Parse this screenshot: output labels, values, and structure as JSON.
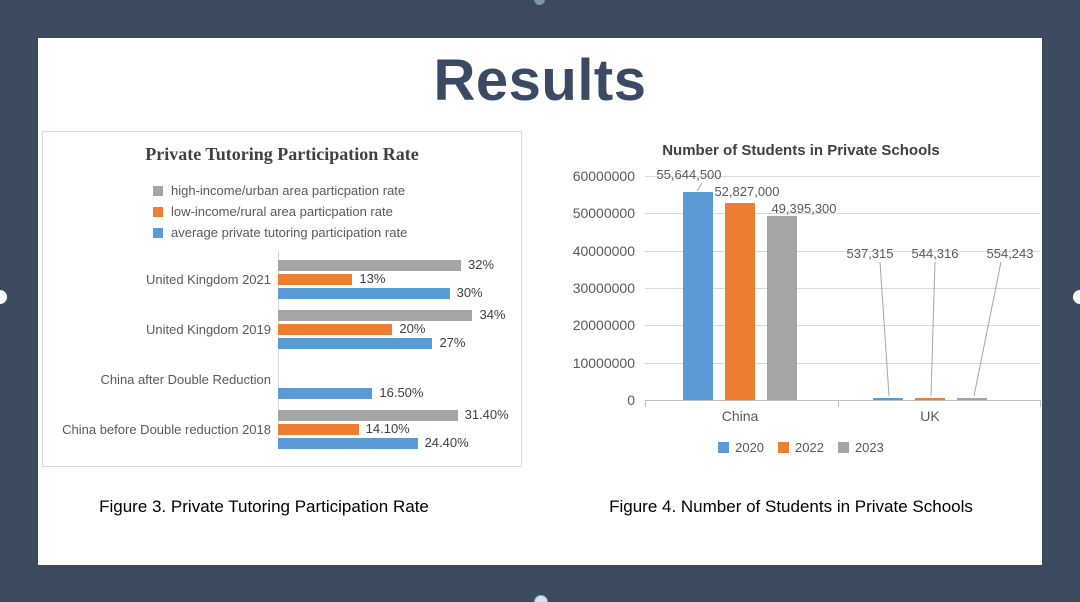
{
  "slide": {
    "title": "Results"
  },
  "figures": [
    {
      "caption": "Figure 3. Private Tutoring Participation Rate"
    },
    {
      "caption": "Figure 4. Number of Students in Private Schools"
    }
  ],
  "colors": {
    "background": "#3C4A5E",
    "slide_title_text": "#3A4A64",
    "series_blue": "#5B9BD5",
    "series_orange": "#ED7D31",
    "series_gray": "#A5A5A5",
    "gridline": "#D9D9D9",
    "axis_line": "#BFBFBF",
    "axis_text": "#595959",
    "chart_title_text": "#404040"
  },
  "chart_data": [
    {
      "type": "bar",
      "orientation": "horizontal",
      "title": "Private Tutoring Participation Rate",
      "legend_position": "top-left",
      "grid": false,
      "xlim": [
        0,
        40
      ],
      "categories": [
        "United Kingdom 2021",
        "United Kingdom 2019",
        "China after Double Reduction",
        "China before Double reduction 2018"
      ],
      "series": [
        {
          "name": "high-income/urban area particpation rate",
          "color": "#A5A5A5",
          "values": [
            32,
            34,
            null,
            31.4
          ],
          "labels": [
            "32%",
            "34%",
            null,
            "31.40%"
          ]
        },
        {
          "name": "low-income/rural area particpation rate",
          "color": "#ED7D31",
          "values": [
            13,
            20,
            null,
            14.1
          ],
          "labels": [
            "13%",
            "20%",
            null,
            "14.10%"
          ]
        },
        {
          "name": "average private tutoring participation rate",
          "color": "#5B9BD5",
          "values": [
            30,
            27,
            16.5,
            24.4
          ],
          "labels": [
            "30%",
            "27%",
            "16.50%",
            "24.40%"
          ]
        }
      ]
    },
    {
      "type": "bar",
      "orientation": "vertical",
      "title": "Number of Students in Private Schools",
      "legend_position": "bottom",
      "grid": true,
      "ylim": [
        0,
        60000000
      ],
      "yticks": [
        "60000000",
        "50000000",
        "40000000",
        "30000000",
        "20000000",
        "10000000",
        "0"
      ],
      "categories": [
        "China",
        "UK"
      ],
      "series": [
        {
          "name": "2020",
          "color": "#5B9BD5",
          "values": [
            55644500,
            537315
          ],
          "labels": [
            "55,644,500",
            "537,315"
          ]
        },
        {
          "name": "2022",
          "color": "#ED7D31",
          "values": [
            52827000,
            544316
          ],
          "labels": [
            "52,827,000",
            "544,316"
          ]
        },
        {
          "name": "2023",
          "color": "#A5A5A5",
          "values": [
            49395300,
            554243
          ],
          "labels": [
            "49,395,300",
            "554,243"
          ]
        }
      ]
    }
  ]
}
